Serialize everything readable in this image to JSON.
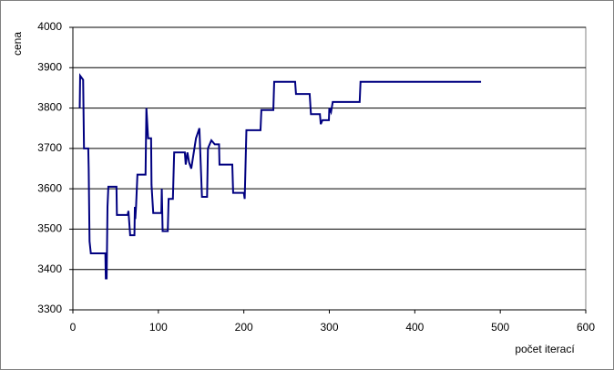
{
  "chart_data": {
    "type": "line",
    "y_label": "cena",
    "x_label": "počet iterací",
    "x": [
      8,
      8.5,
      12,
      13,
      18,
      18.5,
      19.5,
      21,
      38,
      38.5,
      39.5,
      40.5,
      41.5,
      51,
      51.5,
      64,
      65,
      67,
      72,
      72.5,
      73,
      74,
      75.5,
      85,
      86,
      88,
      91.5,
      92,
      94,
      103.5,
      104,
      105,
      111,
      112,
      117,
      118.5,
      131,
      132,
      134,
      136,
      138.5,
      144,
      148,
      151,
      157,
      158,
      162,
      166,
      171,
      171.5,
      186.5,
      187.5,
      200,
      201,
      203,
      219.5,
      220.5,
      234.5,
      235.5,
      260,
      261,
      277,
      278.5,
      289,
      290,
      292,
      299.5,
      300,
      302,
      304,
      335.5,
      336.5,
      477.5
    ],
    "series": [
      {
        "color": "#000080",
        "values": [
          3800,
          3880,
          3870,
          3700,
          3700,
          3650,
          3470,
          3440,
          3440,
          3378,
          3378,
          3555,
          3605,
          3605,
          3535,
          3535,
          3545,
          3485,
          3485,
          3555,
          3525,
          3560,
          3635,
          3635,
          3800,
          3725,
          3725,
          3610,
          3540,
          3540,
          3600,
          3495,
          3495,
          3575,
          3575,
          3690,
          3690,
          3660,
          3690,
          3665,
          3650,
          3725,
          3750,
          3580,
          3580,
          3700,
          3720,
          3710,
          3710,
          3660,
          3660,
          3590,
          3590,
          3575,
          3745,
          3745,
          3795,
          3795,
          3865,
          3865,
          3835,
          3835,
          3785,
          3785,
          3760,
          3770,
          3770,
          3800,
          3790,
          3815,
          3815,
          3865,
          3865
        ]
      }
    ],
    "xlim": [
      0,
      600
    ],
    "xticks": [
      0,
      100,
      200,
      300,
      400,
      500,
      600
    ],
    "ylim": [
      3300,
      4000
    ],
    "yticks": [
      3300,
      3400,
      3500,
      3600,
      3700,
      3800,
      3900,
      4000
    ],
    "grid": true
  }
}
